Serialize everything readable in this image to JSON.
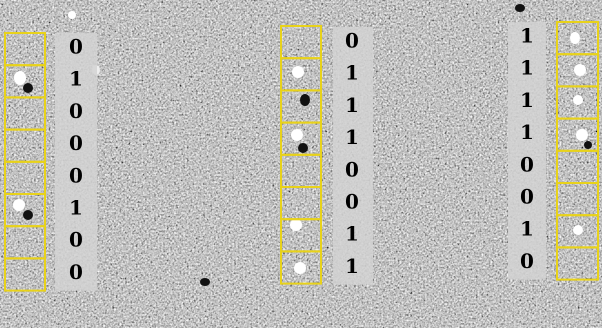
{
  "columns": [
    {
      "bits": [
        "0",
        "1",
        "0",
        "0",
        "0",
        "1",
        "0",
        "0"
      ]
    },
    {
      "bits": [
        "0",
        "1",
        "1",
        "1",
        "0",
        "0",
        "1",
        "1"
      ]
    },
    {
      "bits": [
        "1",
        "1",
        "1",
        "1",
        "0",
        "0",
        "1",
        "0"
      ]
    }
  ]
}
